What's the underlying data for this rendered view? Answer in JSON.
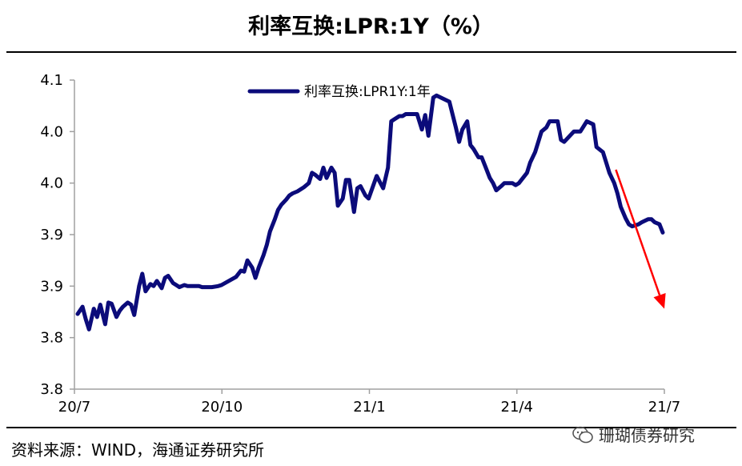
{
  "header": {
    "title": "利率互换:LPR:1Y（%）"
  },
  "footer": {
    "source": "资料来源：WIND，海通证券研究所",
    "watermark": "珊瑚债券研究"
  },
  "colors": {
    "series": "#0b0b7a",
    "arrow": "#ff0000",
    "axis": "#a0a0a0"
  },
  "chart_data": {
    "type": "line",
    "title": "利率互换:LPR:1Y（%）",
    "xlabel": "",
    "ylabel": "",
    "y_tick_labels": [
      "4.1",
      "4.0",
      "4.0",
      "3.9",
      "3.9",
      "3.8",
      "3.8"
    ],
    "ylim": [
      3.8,
      4.1
    ],
    "x_tick_labels": [
      "20/7",
      "20/10",
      "21/1",
      "21/4",
      "21/7"
    ],
    "xlim": [
      "2020-07-01",
      "2021-07-01"
    ],
    "legend": {
      "position": "top-center",
      "entries": [
        "利率互换:LPR1Y:1年"
      ]
    },
    "grid": false,
    "series": [
      {
        "name": "利率互换:LPR1Y:1年",
        "x": [
          "2020-07-03",
          "2020-07-06",
          "2020-07-08",
          "2020-07-10",
          "2020-07-13",
          "2020-07-15",
          "2020-07-17",
          "2020-07-20",
          "2020-07-22",
          "2020-07-24",
          "2020-07-27",
          "2020-07-29",
          "2020-07-31",
          "2020-08-03",
          "2020-08-05",
          "2020-08-07",
          "2020-08-10",
          "2020-08-12",
          "2020-08-14",
          "2020-08-17",
          "2020-08-19",
          "2020-08-21",
          "2020-08-24",
          "2020-08-26",
          "2020-08-28",
          "2020-08-31",
          "2020-09-02",
          "2020-09-04",
          "2020-09-07",
          "2020-09-09",
          "2020-09-11",
          "2020-09-14",
          "2020-09-16",
          "2020-09-18",
          "2020-09-21",
          "2020-09-24",
          "2020-09-28",
          "2020-09-30",
          "2020-10-09",
          "2020-10-12",
          "2020-10-14",
          "2020-10-16",
          "2020-10-19",
          "2020-10-21",
          "2020-10-23",
          "2020-10-26",
          "2020-10-28",
          "2020-10-30",
          "2020-11-02",
          "2020-11-04",
          "2020-11-06",
          "2020-11-09",
          "2020-11-11",
          "2020-11-13",
          "2020-11-16",
          "2020-11-18",
          "2020-11-20",
          "2020-11-23",
          "2020-11-25",
          "2020-11-27",
          "2020-11-30",
          "2020-12-02",
          "2020-12-04",
          "2020-12-07",
          "2020-12-09",
          "2020-12-11",
          "2020-12-14",
          "2020-12-16",
          "2020-12-18",
          "2020-12-21",
          "2020-12-23",
          "2020-12-25",
          "2020-12-28",
          "2020-12-30",
          "2021-01-04",
          "2021-01-06",
          "2021-01-08",
          "2021-01-11",
          "2021-01-13",
          "2021-01-15",
          "2021-01-18",
          "2021-01-20",
          "2021-01-22",
          "2021-01-25",
          "2021-01-27",
          "2021-01-29",
          "2021-02-01",
          "2021-02-03",
          "2021-02-05",
          "2021-02-08",
          "2021-02-10",
          "2021-02-18",
          "2021-02-22",
          "2021-02-24",
          "2021-02-26",
          "2021-03-01",
          "2021-03-03",
          "2021-03-05",
          "2021-03-08",
          "2021-03-10",
          "2021-03-12",
          "2021-03-15",
          "2021-03-17",
          "2021-03-19",
          "2021-03-22",
          "2021-03-24",
          "2021-03-26",
          "2021-03-29",
          "2021-03-31",
          "2021-04-02",
          "2021-04-07",
          "2021-04-09",
          "2021-04-12",
          "2021-04-14",
          "2021-04-16",
          "2021-04-19",
          "2021-04-21",
          "2021-04-23",
          "2021-04-26",
          "2021-04-28",
          "2021-04-30",
          "2021-05-06",
          "2021-05-10",
          "2021-05-14",
          "2021-05-18",
          "2021-05-20",
          "2021-05-24",
          "2021-05-26",
          "2021-05-28",
          "2021-05-31",
          "2021-06-02",
          "2021-06-04",
          "2021-06-07",
          "2021-06-09",
          "2021-06-11",
          "2021-06-15",
          "2021-06-17",
          "2021-06-21",
          "2021-06-23",
          "2021-06-25",
          "2021-06-28",
          "2021-06-30"
        ],
        "values": [
          3.873,
          3.88,
          3.868,
          3.858,
          3.878,
          3.87,
          3.882,
          3.863,
          3.884,
          3.883,
          3.87,
          3.876,
          3.88,
          3.884,
          3.882,
          3.872,
          3.9,
          3.912,
          3.895,
          3.902,
          3.9,
          3.905,
          3.898,
          3.908,
          3.91,
          3.903,
          3.901,
          3.899,
          3.901,
          3.9,
          3.9,
          3.9,
          3.9,
          3.899,
          3.899,
          3.899,
          3.9,
          3.901,
          3.909,
          3.915,
          3.914,
          3.925,
          3.918,
          3.908,
          3.918,
          3.93,
          3.94,
          3.953,
          3.965,
          3.974,
          3.979,
          3.984,
          3.988,
          3.99,
          3.992,
          3.994,
          3.996,
          4.0,
          4.01,
          4.008,
          4.004,
          4.015,
          4.005,
          4.015,
          4.01,
          3.978,
          3.985,
          4.003,
          4.003,
          3.972,
          3.995,
          3.997,
          3.988,
          3.985,
          4.007,
          4.001,
          3.995,
          4.015,
          4.06,
          4.062,
          4.065,
          4.065,
          4.067,
          4.067,
          4.067,
          4.067,
          4.052,
          4.066,
          4.046,
          4.083,
          4.085,
          4.079,
          4.054,
          4.04,
          4.052,
          4.06,
          4.037,
          4.033,
          4.025,
          4.025,
          4.017,
          4.005,
          4.0,
          3.993,
          3.997,
          4.0,
          4.0,
          4.0,
          3.998,
          4.0,
          4.01,
          4.02,
          4.03,
          4.04,
          4.05,
          4.054,
          4.06,
          4.06,
          4.06,
          4.042,
          4.04,
          4.05,
          4.05,
          4.06,
          4.057,
          4.035,
          4.03,
          4.02,
          4.01,
          4.0,
          3.99,
          3.977,
          3.966,
          3.96,
          3.958,
          3.96,
          3.962,
          3.965,
          3.965,
          3.962,
          3.96,
          3.952
        ]
      }
    ],
    "annotations": [
      {
        "type": "arrow",
        "color": "#ff0000",
        "from": [
          "2021-06-01",
          4.013
        ],
        "to": [
          "2021-07-01",
          3.878
        ]
      }
    ]
  }
}
